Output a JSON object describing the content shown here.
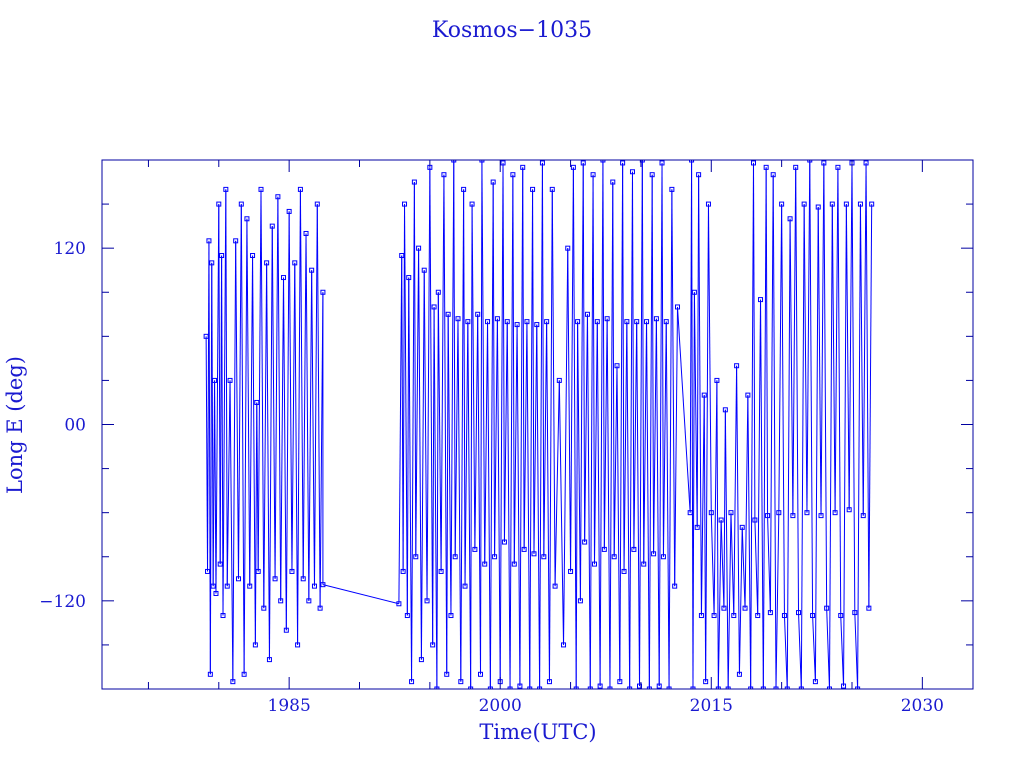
{
  "chart_data": {
    "type": "line",
    "title": "Kosmos−1035",
    "xlabel": "Time(UTC)",
    "ylabel": "Long E (deg)",
    "xlim": [
      1971.7,
      2033.6
    ],
    "ylim": [
      -180,
      180
    ],
    "x_ticks": [
      1985,
      2000,
      2015,
      2030
    ],
    "x_tick_labels": [
      "1985",
      "2000",
      "2015",
      "2030"
    ],
    "x_minor_step": 5,
    "y_ticks": [
      120,
      0,
      -120
    ],
    "y_tick_labels": [
      "120",
      "00",
      "−120"
    ],
    "y_minor_step": 30,
    "grid": false,
    "markers": "square",
    "colors": {
      "frame": "#0000a0",
      "text": "#1a1ad0",
      "series": "#0000ff"
    },
    "points": [
      [
        1979.1,
        60
      ],
      [
        1979.2,
        -100
      ],
      [
        1979.3,
        125
      ],
      [
        1979.4,
        -170
      ],
      [
        1979.5,
        110
      ],
      [
        1979.6,
        -110
      ],
      [
        1979.7,
        30
      ],
      [
        1979.8,
        -115
      ],
      [
        1980.0,
        150
      ],
      [
        1980.1,
        -95
      ],
      [
        1980.2,
        115
      ],
      [
        1980.3,
        -130
      ],
      [
        1980.5,
        160
      ],
      [
        1980.6,
        -110
      ],
      [
        1980.8,
        30
      ],
      [
        1981.0,
        -175
      ],
      [
        1981.2,
        125
      ],
      [
        1981.4,
        -105
      ],
      [
        1981.6,
        150
      ],
      [
        1981.8,
        -170
      ],
      [
        1982.0,
        140
      ],
      [
        1982.2,
        -110
      ],
      [
        1982.4,
        115
      ],
      [
        1982.6,
        -150
      ],
      [
        1982.7,
        15
      ],
      [
        1982.8,
        -100
      ],
      [
        1983.0,
        160
      ],
      [
        1983.2,
        -125
      ],
      [
        1983.4,
        110
      ],
      [
        1983.6,
        -160
      ],
      [
        1983.8,
        135
      ],
      [
        1984.0,
        -105
      ],
      [
        1984.2,
        155
      ],
      [
        1984.4,
        -120
      ],
      [
        1984.6,
        100
      ],
      [
        1984.8,
        -140
      ],
      [
        1985.0,
        145
      ],
      [
        1985.2,
        -100
      ],
      [
        1985.4,
        110
      ],
      [
        1985.6,
        -150
      ],
      [
        1985.8,
        160
      ],
      [
        1986.0,
        -105
      ],
      [
        1986.2,
        130
      ],
      [
        1986.4,
        -120
      ],
      [
        1986.6,
        105
      ],
      [
        1986.8,
        -110
      ],
      [
        1987.0,
        150
      ],
      [
        1987.2,
        -125
      ],
      [
        1987.4,
        90
      ],
      [
        1987.4,
        -109
      ],
      [
        1992.8,
        -122
      ],
      [
        1993.0,
        115
      ],
      [
        1993.1,
        -100
      ],
      [
        1993.2,
        150
      ],
      [
        1993.4,
        -130
      ],
      [
        1993.5,
        100
      ],
      [
        1993.7,
        -175
      ],
      [
        1993.9,
        165
      ],
      [
        1994.0,
        -90
      ],
      [
        1994.2,
        120
      ],
      [
        1994.4,
        -160
      ],
      [
        1994.6,
        105
      ],
      [
        1994.8,
        -120
      ],
      [
        1995.0,
        175
      ],
      [
        1995.2,
        -150
      ],
      [
        1995.3,
        80
      ],
      [
        1995.5,
        -180
      ],
      [
        1995.6,
        90
      ],
      [
        1995.8,
        -100
      ],
      [
        1996.0,
        170
      ],
      [
        1996.2,
        -170
      ],
      [
        1996.3,
        75
      ],
      [
        1996.5,
        -130
      ],
      [
        1996.7,
        180
      ],
      [
        1996.8,
        -90
      ],
      [
        1997.0,
        72
      ],
      [
        1997.2,
        -175
      ],
      [
        1997.4,
        160
      ],
      [
        1997.5,
        -110
      ],
      [
        1997.7,
        70
      ],
      [
        1997.9,
        -180
      ],
      [
        1998.0,
        150
      ],
      [
        1998.2,
        -85
      ],
      [
        1998.4,
        75
      ],
      [
        1998.6,
        -170
      ],
      [
        1998.7,
        180
      ],
      [
        1998.9,
        -95
      ],
      [
        1999.1,
        70
      ],
      [
        1999.3,
        -180
      ],
      [
        1999.5,
        165
      ],
      [
        1999.6,
        -90
      ],
      [
        1999.8,
        72
      ],
      [
        2000.0,
        -175
      ],
      [
        2000.2,
        178
      ],
      [
        2000.3,
        -80
      ],
      [
        2000.5,
        70
      ],
      [
        2000.7,
        -180
      ],
      [
        2000.9,
        170
      ],
      [
        2001.0,
        -95
      ],
      [
        2001.2,
        68
      ],
      [
        2001.4,
        -178
      ],
      [
        2001.6,
        175
      ],
      [
        2001.7,
        -85
      ],
      [
        2001.9,
        70
      ],
      [
        2002.1,
        -180
      ],
      [
        2002.3,
        160
      ],
      [
        2002.4,
        -88
      ],
      [
        2002.6,
        68
      ],
      [
        2002.8,
        -180
      ],
      [
        2003.0,
        178
      ],
      [
        2003.1,
        -90
      ],
      [
        2003.3,
        70
      ],
      [
        2003.5,
        -175
      ],
      [
        2003.7,
        160
      ],
      [
        2003.9,
        -110
      ],
      [
        2004.2,
        30
      ],
      [
        2004.5,
        -150
      ],
      [
        2004.8,
        120
      ],
      [
        2005.0,
        -100
      ],
      [
        2005.2,
        175
      ],
      [
        2005.4,
        -180
      ],
      [
        2005.5,
        70
      ],
      [
        2005.7,
        -120
      ],
      [
        2005.9,
        178
      ],
      [
        2006.0,
        -80
      ],
      [
        2006.2,
        75
      ],
      [
        2006.4,
        -180
      ],
      [
        2006.6,
        170
      ],
      [
        2006.7,
        -95
      ],
      [
        2006.9,
        70
      ],
      [
        2007.1,
        -178
      ],
      [
        2007.3,
        180
      ],
      [
        2007.4,
        -85
      ],
      [
        2007.6,
        72
      ],
      [
        2007.8,
        -180
      ],
      [
        2008.0,
        165
      ],
      [
        2008.1,
        -90
      ],
      [
        2008.3,
        40
      ],
      [
        2008.5,
        -175
      ],
      [
        2008.7,
        178
      ],
      [
        2008.8,
        -100
      ],
      [
        2009.0,
        70
      ],
      [
        2009.2,
        -180
      ],
      [
        2009.4,
        172
      ],
      [
        2009.5,
        -85
      ],
      [
        2009.7,
        70
      ],
      [
        2009.9,
        -178
      ],
      [
        2010.1,
        180
      ],
      [
        2010.2,
        -95
      ],
      [
        2010.4,
        70
      ],
      [
        2010.6,
        -180
      ],
      [
        2010.8,
        170
      ],
      [
        2010.9,
        -88
      ],
      [
        2011.1,
        72
      ],
      [
        2011.3,
        -178
      ],
      [
        2011.5,
        178
      ],
      [
        2011.6,
        -90
      ],
      [
        2011.8,
        70
      ],
      [
        2012.0,
        -180
      ],
      [
        2012.2,
        160
      ],
      [
        2012.4,
        -110
      ],
      [
        2012.6,
        80
      ],
      [
        2013.5,
        -60
      ],
      [
        2013.6,
        180
      ],
      [
        2013.7,
        -180
      ],
      [
        2013.8,
        90
      ],
      [
        2014.0,
        -70
      ],
      [
        2014.1,
        170
      ],
      [
        2014.3,
        -130
      ],
      [
        2014.5,
        20
      ],
      [
        2014.6,
        -175
      ],
      [
        2014.8,
        150
      ],
      [
        2015.0,
        -60
      ],
      [
        2015.2,
        -130
      ],
      [
        2015.4,
        30
      ],
      [
        2015.5,
        -180
      ],
      [
        2015.7,
        -65
      ],
      [
        2015.9,
        -125
      ],
      [
        2016.0,
        10
      ],
      [
        2016.2,
        -180
      ],
      [
        2016.4,
        -60
      ],
      [
        2016.6,
        -130
      ],
      [
        2016.8,
        40
      ],
      [
        2017.0,
        -170
      ],
      [
        2017.2,
        -70
      ],
      [
        2017.4,
        -125
      ],
      [
        2017.6,
        20
      ],
      [
        2017.8,
        -180
      ],
      [
        2018.0,
        178
      ],
      [
        2018.1,
        -65
      ],
      [
        2018.3,
        -130
      ],
      [
        2018.5,
        85
      ],
      [
        2018.7,
        -180
      ],
      [
        2018.9,
        175
      ],
      [
        2019.0,
        -62
      ],
      [
        2019.2,
        -128
      ],
      [
        2019.4,
        170
      ],
      [
        2019.6,
        -180
      ],
      [
        2019.8,
        -60
      ],
      [
        2020.0,
        150
      ],
      [
        2020.2,
        -130
      ],
      [
        2020.4,
        -180
      ],
      [
        2020.6,
        140
      ],
      [
        2020.8,
        -62
      ],
      [
        2021.0,
        175
      ],
      [
        2021.2,
        -128
      ],
      [
        2021.4,
        -180
      ],
      [
        2021.6,
        150
      ],
      [
        2021.8,
        -60
      ],
      [
        2022.0,
        180
      ],
      [
        2022.2,
        -130
      ],
      [
        2022.4,
        -175
      ],
      [
        2022.6,
        148
      ],
      [
        2022.8,
        -62
      ],
      [
        2023.0,
        178
      ],
      [
        2023.2,
        -125
      ],
      [
        2023.4,
        -180
      ],
      [
        2023.6,
        150
      ],
      [
        2023.8,
        -60
      ],
      [
        2024.0,
        175
      ],
      [
        2024.2,
        -130
      ],
      [
        2024.4,
        -178
      ],
      [
        2024.6,
        150
      ],
      [
        2024.8,
        -58
      ],
      [
        2025.0,
        178
      ],
      [
        2025.2,
        -128
      ],
      [
        2025.4,
        -180
      ],
      [
        2025.6,
        150
      ],
      [
        2025.8,
        -62
      ],
      [
        2026.0,
        178
      ],
      [
        2026.2,
        -125
      ],
      [
        2026.4,
        150
      ]
    ]
  }
}
